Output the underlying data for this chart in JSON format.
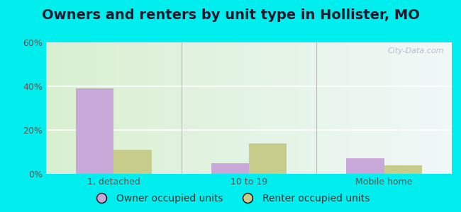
{
  "title": "Owners and renters by unit type in Hollister, MO",
  "categories": [
    "1, detached",
    "10 to 19",
    "Mobile home"
  ],
  "owner_values": [
    39,
    5,
    7
  ],
  "renter_values": [
    11,
    14,
    4
  ],
  "owner_color": "#c8a8d8",
  "renter_color": "#c8cc8a",
  "ylim": [
    0,
    60
  ],
  "yticks": [
    0,
    20,
    40,
    60
  ],
  "ytick_labels": [
    "0%",
    "20%",
    "40%",
    "60%"
  ],
  "legend_owner": "Owner occupied units",
  "legend_renter": "Renter occupied units",
  "bg_color": "#00eeee",
  "bar_width": 0.28,
  "group_positions": [
    1,
    2,
    3
  ],
  "watermark": "City-Data.com",
  "title_fontsize": 14,
  "tick_fontsize": 9,
  "legend_fontsize": 10
}
